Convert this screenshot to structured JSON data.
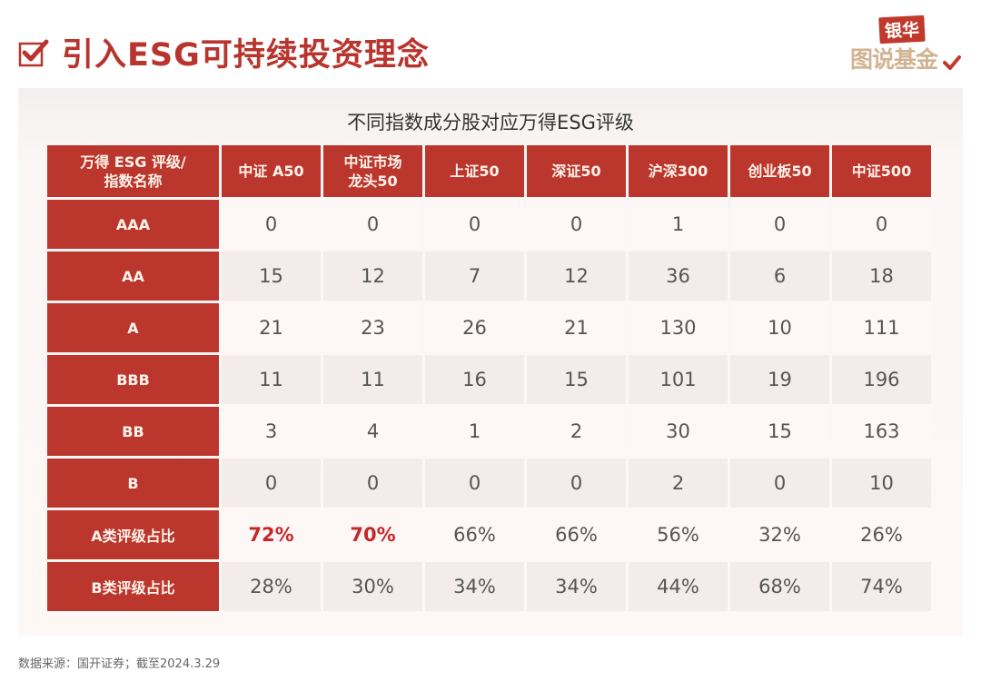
{
  "header": {
    "title": "引入ESG可持续投资理念",
    "logo_top": "银华",
    "logo_bottom": "图说基金"
  },
  "colors": {
    "accent": "#bb362c",
    "title": "#b8342c",
    "highlight_text": "#c62828",
    "row_light": "#fdf7f6",
    "row_dark": "#f4ecea",
    "logo_tan": "#d2b391"
  },
  "table": {
    "title": "不同指数成分股对应万得ESG评级",
    "corner_line1": "万得 ESG 评级/",
    "corner_line2": "指数名称",
    "columns": [
      {
        "line1": "中证 A50",
        "line2": ""
      },
      {
        "line1": "中证市场",
        "line2": "龙头50"
      },
      {
        "line1": "上证50",
        "line2": ""
      },
      {
        "line1": "深证50",
        "line2": ""
      },
      {
        "line1": "沪深300",
        "line2": ""
      },
      {
        "line1": "创业板50",
        "line2": ""
      },
      {
        "line1": "中证500",
        "line2": ""
      }
    ],
    "rows": [
      {
        "label": "AAA",
        "values": [
          "0",
          "0",
          "0",
          "0",
          "1",
          "0",
          "0"
        ]
      },
      {
        "label": "AA",
        "values": [
          "15",
          "12",
          "7",
          "12",
          "36",
          "6",
          "18"
        ]
      },
      {
        "label": "A",
        "values": [
          "21",
          "23",
          "26",
          "21",
          "130",
          "10",
          "111"
        ]
      },
      {
        "label": "BBB",
        "values": [
          "11",
          "11",
          "16",
          "15",
          "101",
          "19",
          "196"
        ]
      },
      {
        "label": "BB",
        "values": [
          "3",
          "4",
          "1",
          "2",
          "30",
          "15",
          "163"
        ]
      },
      {
        "label": "B",
        "values": [
          "0",
          "0",
          "0",
          "0",
          "2",
          "0",
          "10"
        ]
      },
      {
        "label": "A类评级占比",
        "values": [
          "72%",
          "70%",
          "66%",
          "66%",
          "56%",
          "32%",
          "26%"
        ],
        "highlight": [
          0,
          1
        ]
      },
      {
        "label": "B类评级占比",
        "values": [
          "28%",
          "30%",
          "34%",
          "34%",
          "44%",
          "68%",
          "74%"
        ]
      }
    ]
  },
  "footer": {
    "source": "数据来源：国开证券；截至2024.3.29"
  }
}
